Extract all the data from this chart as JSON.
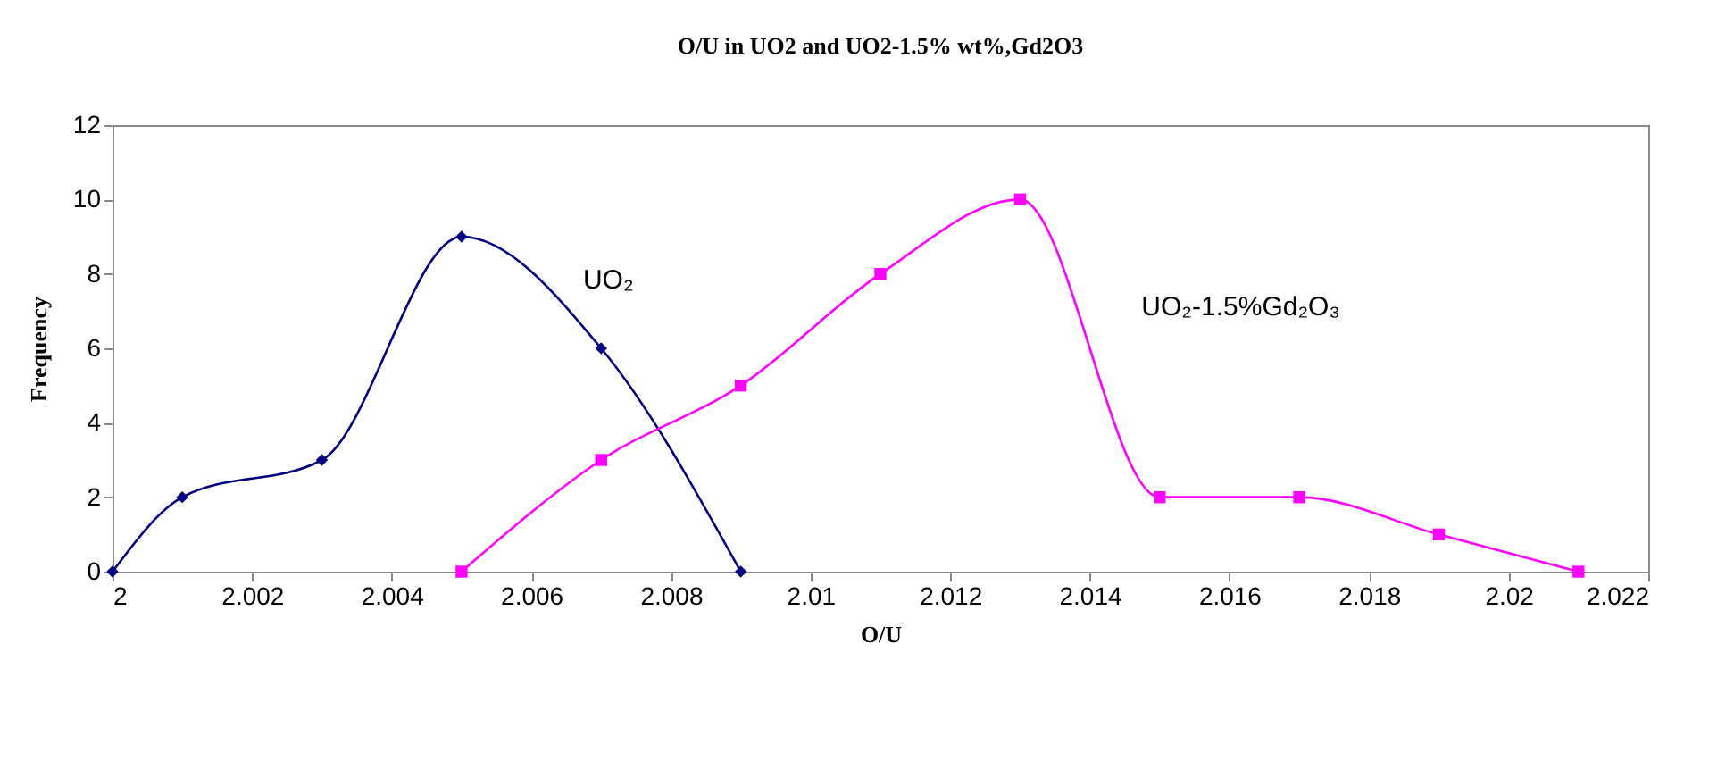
{
  "chart_data": {
    "type": "line",
    "title": "O/U in UO2 and UO2-1.5% wt%,Gd2O3",
    "xlabel": "O/U",
    "ylabel": "Frequency",
    "xlim": [
      2,
      2.022
    ],
    "xticks": [
      2,
      2.002,
      2.004,
      2.006,
      2.008,
      2.01,
      2.012,
      2.014,
      2.016,
      2.018,
      2.02,
      2.022
    ],
    "ylim": [
      0,
      12
    ],
    "yticks": [
      0,
      2,
      4,
      6,
      8,
      10,
      12
    ],
    "grid": false,
    "series": [
      {
        "name": "UO₂",
        "color": "#000080",
        "marker": "diamond",
        "x": [
          2,
          2.001,
          2.003,
          2.005,
          2.007,
          2.009
        ],
        "values": [
          0,
          2,
          3,
          9,
          6,
          0
        ]
      },
      {
        "name": "UO₂-1.5%Gd₂O₃",
        "color": "#ff00ff",
        "marker": "square",
        "x": [
          2.005,
          2.007,
          2.009,
          2.011,
          2.013,
          2.015,
          2.017,
          2.019,
          2.021
        ],
        "values": [
          0,
          3,
          5,
          8,
          10,
          2,
          2,
          1,
          0
        ]
      }
    ]
  }
}
